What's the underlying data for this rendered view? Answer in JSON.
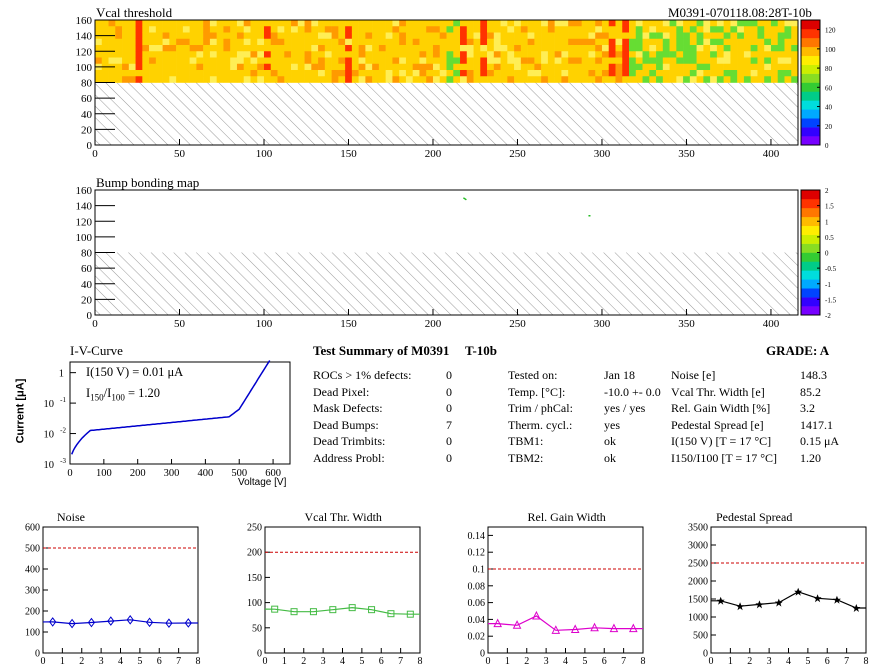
{
  "header": {
    "map1_title": "Vcal threshold",
    "module_id": "M0391-070118.08:28T-10b",
    "map2_title": "Bump bonding map"
  },
  "maps": {
    "y_ticks": [
      0,
      20,
      40,
      60,
      80,
      100,
      120,
      140,
      160
    ],
    "x_ticks": [
      0,
      50,
      100,
      150,
      200,
      250,
      300,
      350,
      400
    ],
    "x_range": [
      0,
      416
    ],
    "y_range": [
      0,
      160
    ],
    "map1_palette_labels": [
      "0",
      "20",
      "40",
      "60",
      "80",
      "100",
      "120"
    ],
    "map2_palette_labels": [
      "-2",
      "-1.5",
      "-1",
      "-0.5",
      "0",
      "0.5",
      "1",
      "1.5",
      "2"
    ],
    "color_hot": "#ff3300",
    "color_mid": "#ffd200",
    "color_cool": "#66dd33",
    "hatch_color": "#9a9a9a"
  },
  "iv": {
    "title": "I-V-Curve",
    "ylabel": "Current [μA]",
    "xlabel": "Voltage [V]",
    "note1": "I(150 V) = 0.01 μA",
    "note2_a": "I",
    "note2_sub1": "150",
    "note2_b": "/I",
    "note2_sub2": "100",
    "note2_c": " =  1.20",
    "x_ticks": [
      "0",
      "100",
      "200",
      "300",
      "400",
      "500",
      "600"
    ],
    "y_ticks": [
      "1",
      "10",
      "10",
      "10"
    ],
    "y_exps": [
      "",
      "-1",
      "-2",
      "-3"
    ],
    "line_color": "#0000cc"
  },
  "summary": {
    "title": "Test Summary of M0391",
    "tag": "T-10b",
    "grade_label": "GRADE:  A",
    "left_labels": [
      "ROCs > 1% defects:",
      "Dead Pixel:",
      "Mask Defects:",
      "Dead Bumps:",
      "Dead Trimbits:",
      "Address Probl:"
    ],
    "left_values": [
      "0",
      "0",
      "0",
      "7",
      "0",
      "0"
    ],
    "mid_labels": [
      "Tested on:",
      "Temp. [°C]:",
      "Trim / phCal:",
      "Therm. cycl.:",
      "TBM1:",
      "TBM2:"
    ],
    "mid_values": [
      "Jan 18",
      "-10.0 +- 0.0",
      "yes / yes",
      "yes",
      "ok",
      "ok"
    ],
    "right_labels": [
      "Noise [e]",
      "Vcal Thr. Width [e]",
      "Rel. Gain Width [%]",
      "Pedestal Spread [e]",
      "I(150 V) [T = 17 °C]",
      "I150/I100  [T = 17 °C]"
    ],
    "right_values": [
      "148.3",
      "85.2",
      "3.2",
      "1417.1",
      "0.15 μA",
      "1.20"
    ]
  },
  "chart_data": [
    {
      "type": "line",
      "title": "Noise",
      "x": [
        0.5,
        1.5,
        2.5,
        3.5,
        4.5,
        5.5,
        6.5,
        7.5
      ],
      "values": [
        148,
        140,
        145,
        152,
        158,
        146,
        142,
        143
      ],
      "xlim": [
        0,
        8
      ],
      "ylim": [
        0,
        600
      ],
      "x_ticks": [
        0,
        1,
        2,
        3,
        4,
        5,
        6,
        7,
        8
      ],
      "y_ticks": [
        0,
        100,
        200,
        300,
        400,
        500,
        600
      ],
      "limit": 500,
      "color": "#0000cc",
      "marker": "diamond"
    },
    {
      "type": "line",
      "title": "Vcal Thr. Width",
      "x": [
        0.5,
        1.5,
        2.5,
        3.5,
        4.5,
        5.5,
        6.5,
        7.5
      ],
      "values": [
        87,
        82,
        82,
        86,
        90,
        86,
        78,
        77
      ],
      "xlim": [
        0,
        8
      ],
      "ylim": [
        0,
        250
      ],
      "x_ticks": [
        0,
        1,
        2,
        3,
        4,
        5,
        6,
        7,
        8
      ],
      "y_ticks": [
        0,
        50,
        100,
        150,
        200,
        250
      ],
      "limit": 200,
      "color": "#44bb44",
      "marker": "square"
    },
    {
      "type": "line",
      "title": "Rel. Gain Width",
      "x": [
        0.5,
        1.5,
        2.5,
        3.5,
        4.5,
        5.5,
        6.5,
        7.5
      ],
      "values": [
        0.035,
        0.033,
        0.044,
        0.027,
        0.028,
        0.03,
        0.029,
        0.029
      ],
      "xlim": [
        0,
        8
      ],
      "ylim": [
        0,
        0.15
      ],
      "x_ticks": [
        0,
        1,
        2,
        3,
        4,
        5,
        6,
        7,
        8
      ],
      "y_ticks": [
        0,
        0.02,
        0.04,
        0.06,
        0.08,
        0.1,
        0.12,
        0.14
      ],
      "limit": 0.1,
      "color": "#dd00cc",
      "marker": "triangle"
    },
    {
      "type": "line",
      "title": "Pedestal Spread",
      "x": [
        0.5,
        1.5,
        2.5,
        3.5,
        4.5,
        5.5,
        6.5,
        7.5
      ],
      "values": [
        1450,
        1300,
        1350,
        1400,
        1700,
        1520,
        1480,
        1250
      ],
      "xlim": [
        0,
        8
      ],
      "ylim": [
        0,
        3500
      ],
      "x_ticks": [
        0,
        1,
        2,
        3,
        4,
        5,
        6,
        7,
        8
      ],
      "y_ticks": [
        0,
        500,
        1000,
        1500,
        2000,
        2500,
        3000,
        3500
      ],
      "limit": 2500,
      "color": "#000000",
      "marker": "star"
    }
  ]
}
